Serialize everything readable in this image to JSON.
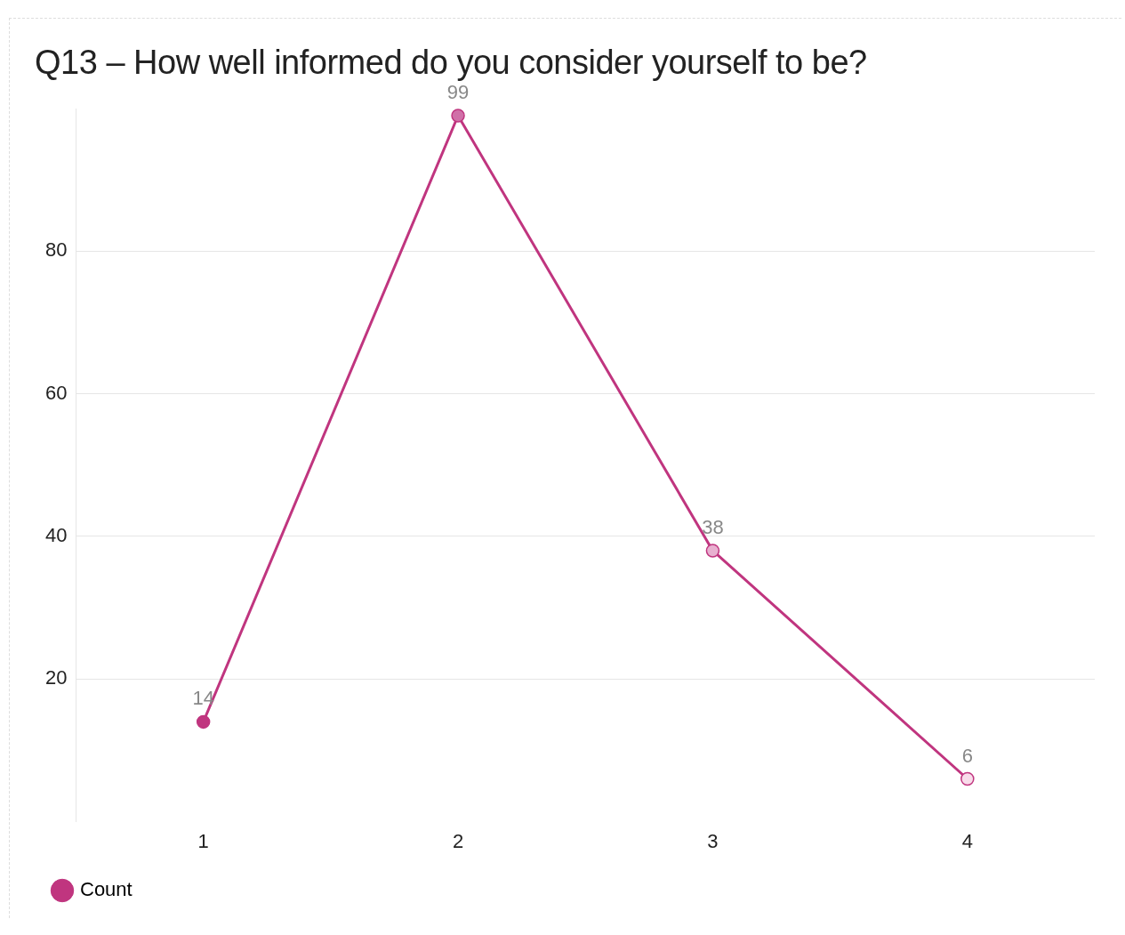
{
  "chart_data": {
    "type": "line",
    "title": "Q13 – How well informed do you consider yourself to be?",
    "categories": [
      "1",
      "2",
      "3",
      "4"
    ],
    "series": [
      {
        "name": "Count",
        "color": "#c0357f",
        "colors": [
          "#c0357f",
          "#d070a8",
          "#e8b0d0",
          "#f8dcea"
        ],
        "values": [
          14,
          99,
          38,
          6
        ]
      }
    ],
    "ylim": [
      0,
      100
    ],
    "yticks": [
      20,
      40,
      60,
      80
    ],
    "grid": "y",
    "legend": "bottom left",
    "marker": "circle",
    "data_labels": true
  }
}
